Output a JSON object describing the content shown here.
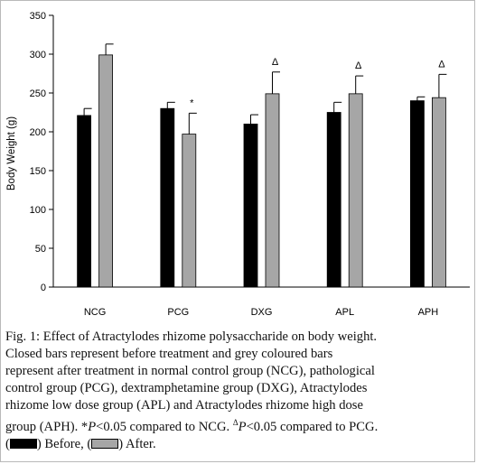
{
  "chart_data": {
    "type": "bar",
    "ylabel": "Body Weight (g)",
    "ylim": [
      0,
      350
    ],
    "yticks": [
      0,
      50,
      100,
      150,
      200,
      250,
      300,
      350
    ],
    "grid": false,
    "categories": [
      "NCG",
      "PCG",
      "DXG",
      "APL",
      "APH"
    ],
    "series": [
      {
        "color": "#000000",
        "values": [
          221,
          230,
          210,
          225,
          240
        ],
        "errors": [
          9,
          8,
          12,
          13,
          5
        ]
      },
      {
        "color": "#a6a6a6",
        "values": [
          299,
          197,
          249,
          249,
          244
        ],
        "errors": [
          14,
          27,
          28,
          23,
          30
        ]
      }
    ],
    "annotations": [
      {
        "category": "PCG",
        "series": 1,
        "marker": "*"
      },
      {
        "category": "DXG",
        "series": 1,
        "marker": "Δ"
      },
      {
        "category": "APL",
        "series": 1,
        "marker": "Δ"
      },
      {
        "category": "APH",
        "series": 1,
        "marker": "Δ"
      }
    ]
  },
  "caption": {
    "line1": "Fig. 1: Effect of Atractylodes rhizome polysaccharide on body weight.",
    "line2": "Closed bars represent before treatment and grey coloured bars",
    "line3": "represent after treatment in normal control group (NCG), pathological",
    "line4": "control group (PCG), dextramphetamine group (DXG), Atractylodes",
    "line5": "rhizome low dose group (APL) and Atractylodes rhizome high dose",
    "line6a": "group (APH). *",
    "line6b": "P",
    "line6c": "<0.05 compared to NCG. ",
    "line6d": "Δ",
    "line6e": "P",
    "line6f": "<0.05 compared to PCG.",
    "legend_open": "(",
    "legend_before": ") Before, (",
    "legend_after": ") After."
  }
}
